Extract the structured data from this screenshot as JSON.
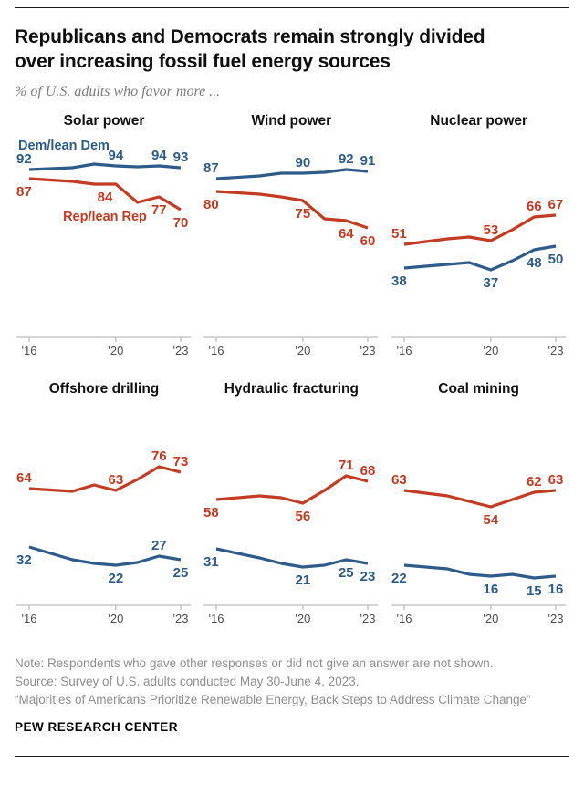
{
  "header": {
    "title_lines": [
      "Republicans and Democrats remain strongly divided",
      "over increasing fossil fuel energy sources"
    ],
    "subtitle": "% of U.S. adults who favor more ..."
  },
  "colors": {
    "dem": "#2E5C8A",
    "rep": "#C23B22",
    "axis": "#BDBDBD",
    "tick_text": "#4D4D4D",
    "note": "#8F8F8F"
  },
  "axis": {
    "x_range": [
      2016,
      2023
    ],
    "ticks": [
      2016,
      2020,
      2023
    ],
    "tick_labels": [
      "'16",
      "'20",
      "'23"
    ],
    "y_range": [
      0,
      100
    ],
    "grid": false,
    "legend": "inline-labels-first-panel"
  },
  "chart_data": [
    {
      "type": "line",
      "title": "Solar power",
      "series": [
        {
          "name": "Dem/lean Dem",
          "party": "dem",
          "x": [
            2016,
            2018,
            2019,
            2020,
            2021,
            2022,
            2023
          ],
          "y": [
            92,
            93,
            95,
            94,
            93.5,
            94,
            93
          ],
          "labels": [
            {
              "x": 2016,
              "v": 92,
              "pos": "start-above"
            },
            {
              "x": 2020,
              "v": 94,
              "pos": "above"
            },
            {
              "x": 2022,
              "v": 94,
              "pos": "above"
            },
            {
              "x": 2023,
              "v": 93,
              "pos": "above"
            }
          ],
          "name_label": {
            "x": 2017.6,
            "v": 103
          }
        },
        {
          "name": "Rep/lean Rep",
          "party": "rep",
          "x": [
            2016,
            2018,
            2019,
            2020,
            2021,
            2022,
            2023
          ],
          "y": [
            87,
            85.5,
            84,
            84,
            74,
            77,
            70
          ],
          "labels": [
            {
              "x": 2016,
              "v": 87,
              "pos": "start-below"
            },
            {
              "x": 2019.5,
              "v": 84,
              "pos": "below"
            },
            {
              "x": 2022,
              "v": 77,
              "pos": "below"
            },
            {
              "x": 2023,
              "v": 70,
              "pos": "below"
            }
          ],
          "name_label": {
            "x": 2019.5,
            "v": 64
          }
        }
      ]
    },
    {
      "type": "line",
      "title": "Wind power",
      "series": [
        {
          "name": "Dem/lean Dem",
          "party": "dem",
          "x": [
            2016,
            2018,
            2019,
            2020,
            2021,
            2022,
            2023
          ],
          "y": [
            87,
            88.5,
            90,
            90,
            90.5,
            92,
            91
          ],
          "labels": [
            {
              "x": 2016,
              "v": 87,
              "pos": "start-above"
            },
            {
              "x": 2020,
              "v": 90,
              "pos": "above"
            },
            {
              "x": 2022,
              "v": 92,
              "pos": "above"
            },
            {
              "x": 2023,
              "v": 91,
              "pos": "above"
            }
          ]
        },
        {
          "name": "Rep/lean Rep",
          "party": "rep",
          "x": [
            2016,
            2018,
            2019,
            2020,
            2021,
            2022,
            2023
          ],
          "y": [
            80,
            78.5,
            77,
            75,
            65,
            64,
            60
          ],
          "labels": [
            {
              "x": 2016,
              "v": 80,
              "pos": "start-below"
            },
            {
              "x": 2020,
              "v": 75,
              "pos": "below"
            },
            {
              "x": 2022,
              "v": 64,
              "pos": "below"
            },
            {
              "x": 2023,
              "v": 60,
              "pos": "below"
            }
          ]
        }
      ]
    },
    {
      "type": "line",
      "title": "Nuclear power",
      "series": [
        {
          "name": "Rep/lean Rep",
          "party": "rep",
          "x": [
            2016,
            2018,
            2019,
            2020,
            2021,
            2022,
            2023
          ],
          "y": [
            51,
            54,
            55,
            53,
            59,
            66,
            67
          ],
          "labels": [
            {
              "x": 2016,
              "v": 51,
              "pos": "start-above"
            },
            {
              "x": 2020,
              "v": 53,
              "pos": "above"
            },
            {
              "x": 2022,
              "v": 66,
              "pos": "above"
            },
            {
              "x": 2023,
              "v": 67,
              "pos": "above"
            }
          ]
        },
        {
          "name": "Dem/lean Dem",
          "party": "dem",
          "x": [
            2016,
            2018,
            2019,
            2020,
            2021,
            2022,
            2023
          ],
          "y": [
            38,
            40,
            41,
            37,
            42,
            48,
            50
          ],
          "labels": [
            {
              "x": 2016,
              "v": 38,
              "pos": "start-below"
            },
            {
              "x": 2020,
              "v": 37,
              "pos": "below"
            },
            {
              "x": 2022,
              "v": 48,
              "pos": "below"
            },
            {
              "x": 2023,
              "v": 50,
              "pos": "below"
            }
          ]
        }
      ]
    },
    {
      "type": "line",
      "title": "Offshore drilling",
      "series": [
        {
          "name": "Rep/lean Rep",
          "party": "rep",
          "x": [
            2016,
            2018,
            2019,
            2020,
            2021,
            2022,
            2023
          ],
          "y": [
            64,
            62.5,
            66,
            63,
            69,
            76,
            73
          ],
          "labels": [
            {
              "x": 2016,
              "v": 64,
              "pos": "start-above"
            },
            {
              "x": 2020,
              "v": 63,
              "pos": "above"
            },
            {
              "x": 2022,
              "v": 76,
              "pos": "above"
            },
            {
              "x": 2023,
              "v": 73,
              "pos": "above"
            }
          ]
        },
        {
          "name": "Dem/lean Dem",
          "party": "dem",
          "x": [
            2016,
            2018,
            2019,
            2020,
            2021,
            2022,
            2023
          ],
          "y": [
            32,
            25,
            23,
            22,
            23.5,
            27,
            25
          ],
          "labels": [
            {
              "x": 2016,
              "v": 32,
              "pos": "start-below"
            },
            {
              "x": 2020,
              "v": 22,
              "pos": "below"
            },
            {
              "x": 2022,
              "v": 27,
              "pos": "above"
            },
            {
              "x": 2023,
              "v": 25,
              "pos": "below"
            }
          ]
        }
      ]
    },
    {
      "type": "line",
      "title": "Hydraulic fracturing",
      "series": [
        {
          "name": "Rep/lean Rep",
          "party": "rep",
          "x": [
            2016,
            2018,
            2019,
            2020,
            2021,
            2022,
            2023
          ],
          "y": [
            58,
            60,
            59,
            56,
            63,
            71,
            68
          ],
          "labels": [
            {
              "x": 2016,
              "v": 58,
              "pos": "start-below"
            },
            {
              "x": 2020,
              "v": 56,
              "pos": "below"
            },
            {
              "x": 2022,
              "v": 71,
              "pos": "above"
            },
            {
              "x": 2023,
              "v": 68,
              "pos": "above"
            }
          ]
        },
        {
          "name": "Dem/lean Dem",
          "party": "dem",
          "x": [
            2016,
            2018,
            2019,
            2020,
            2021,
            2022,
            2023
          ],
          "y": [
            31,
            26,
            23,
            21,
            22,
            25,
            23
          ],
          "labels": [
            {
              "x": 2016,
              "v": 31,
              "pos": "start-below"
            },
            {
              "x": 2020,
              "v": 21,
              "pos": "below"
            },
            {
              "x": 2022,
              "v": 25,
              "pos": "below"
            },
            {
              "x": 2023,
              "v": 23,
              "pos": "below"
            }
          ]
        }
      ]
    },
    {
      "type": "line",
      "title": "Coal mining",
      "series": [
        {
          "name": "Rep/lean Rep",
          "party": "rep",
          "x": [
            2016,
            2018,
            2019,
            2020,
            2021,
            2022,
            2023
          ],
          "y": [
            63,
            60,
            57,
            54,
            58,
            62,
            63
          ],
          "labels": [
            {
              "x": 2016,
              "v": 63,
              "pos": "start-above"
            },
            {
              "x": 2020,
              "v": 54,
              "pos": "below"
            },
            {
              "x": 2022,
              "v": 62,
              "pos": "above"
            },
            {
              "x": 2023,
              "v": 63,
              "pos": "above"
            }
          ]
        },
        {
          "name": "Dem/lean Dem",
          "party": "dem",
          "x": [
            2016,
            2018,
            2019,
            2020,
            2021,
            2022,
            2023
          ],
          "y": [
            22,
            20,
            17,
            16,
            17,
            15,
            16
          ],
          "labels": [
            {
              "x": 2016,
              "v": 22,
              "pos": "start-below"
            },
            {
              "x": 2020,
              "v": 16,
              "pos": "below"
            },
            {
              "x": 2022,
              "v": 15,
              "pos": "below"
            },
            {
              "x": 2023,
              "v": 16,
              "pos": "below"
            }
          ]
        }
      ]
    }
  ],
  "footer": {
    "note": "Note: Respondents who gave other responses or did not give an answer are not shown.",
    "source": "Source: Survey of U.S. adults conducted May 30-June 4, 2023.",
    "report": "“Majorities of Americans Prioritize Renewable Energy, Back Steps to Address Climate Change”",
    "brand": "PEW RESEARCH CENTER"
  }
}
